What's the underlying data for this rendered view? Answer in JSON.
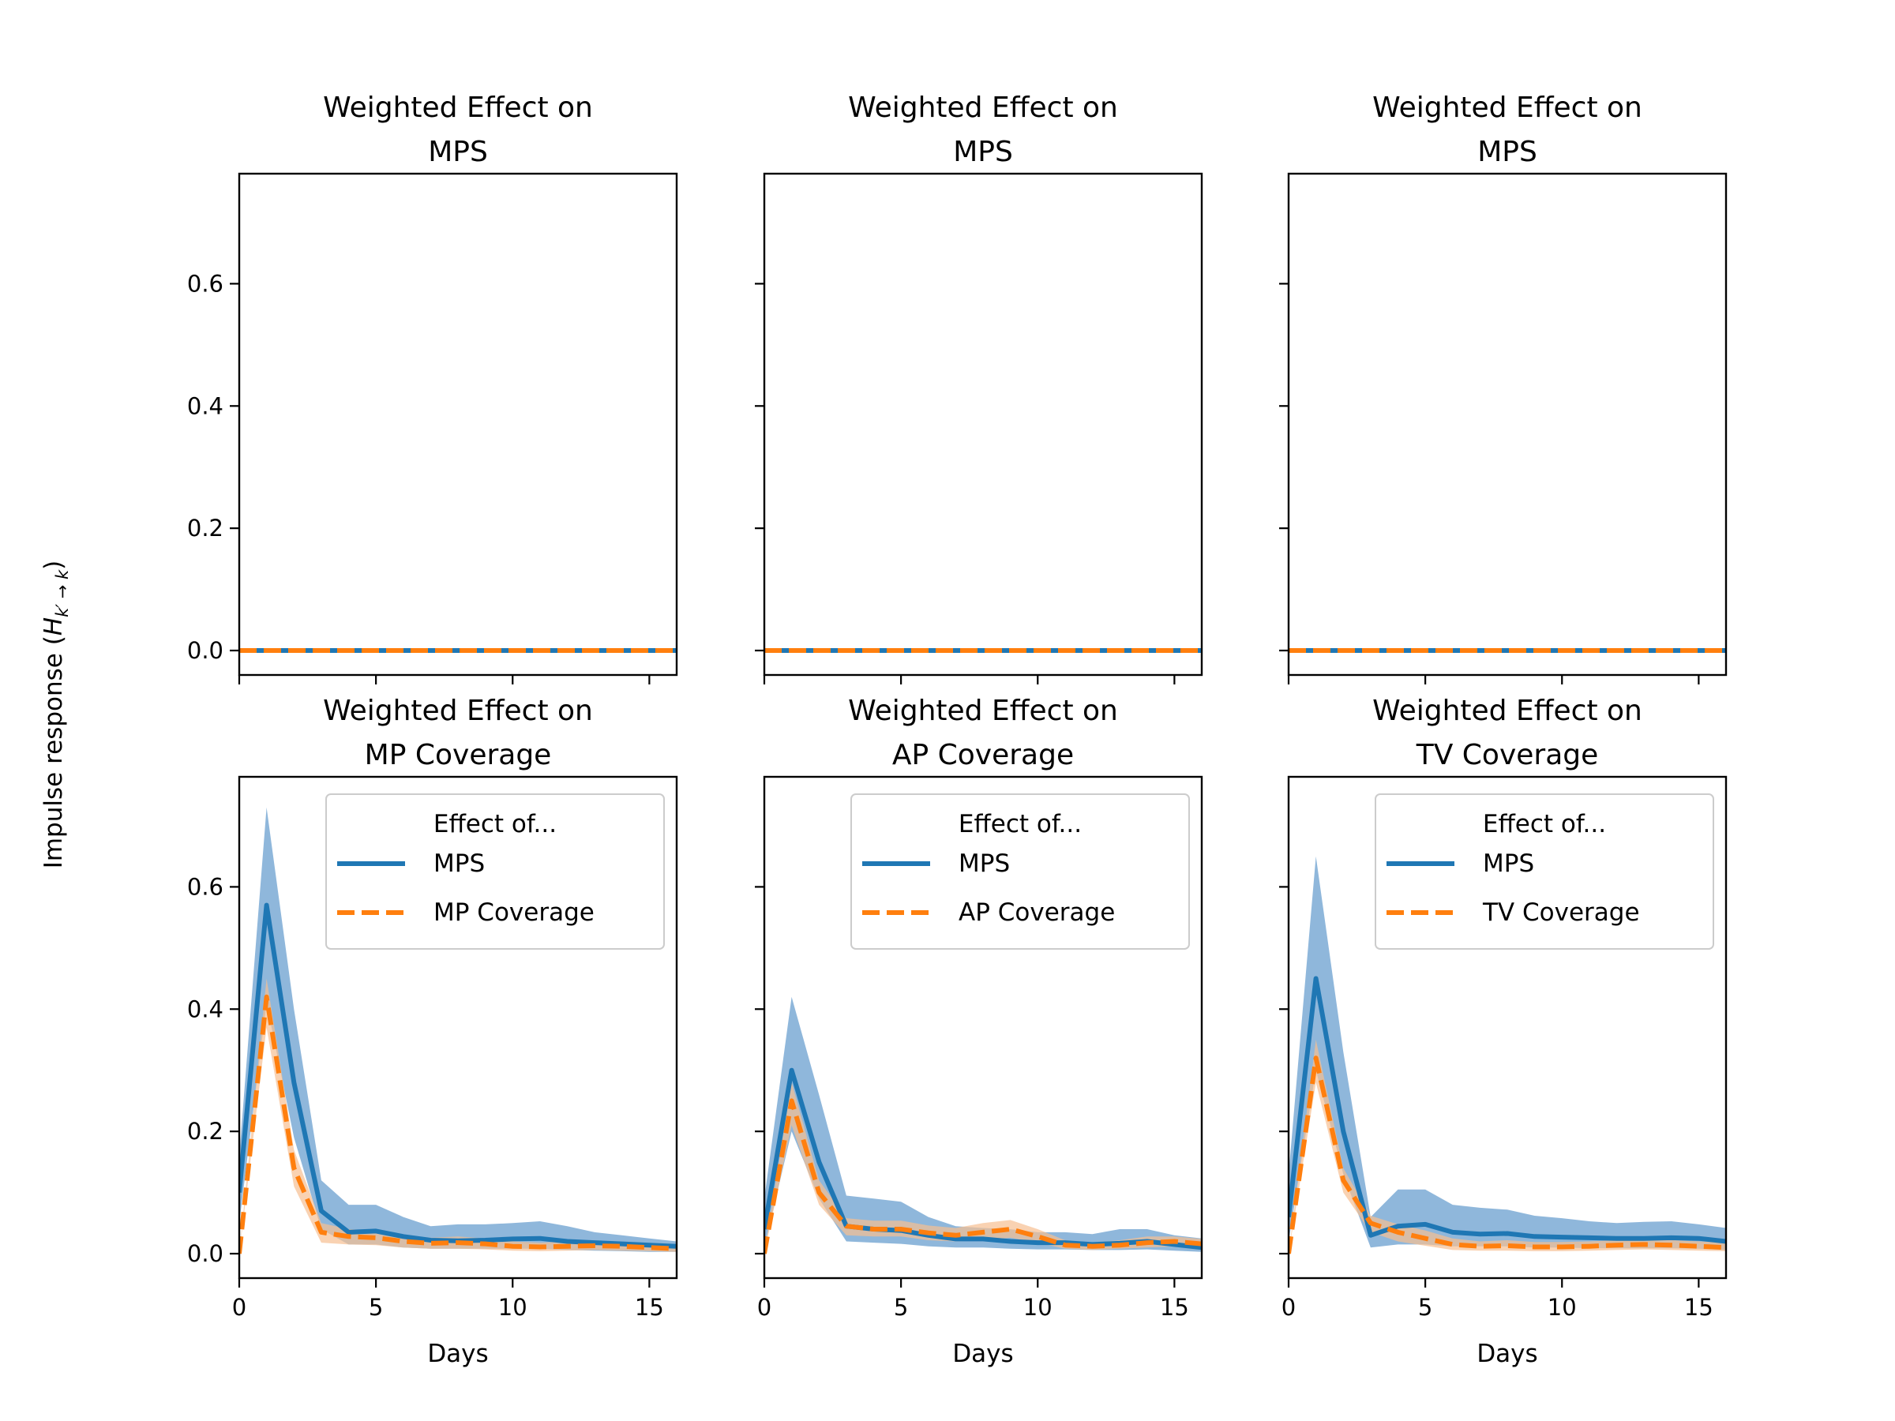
{
  "chart_data": {
    "type": "line",
    "ylabel": "Impulse response (H_{k′ → k})",
    "ylabel_parts": {
      "main": "Impulse response (",
      "var": "H",
      "sub": "k′ → k",
      "close": ")"
    },
    "xlabel": "Days",
    "xlim": [
      0,
      16
    ],
    "ylim": [
      -0.04,
      0.78
    ],
    "xticks": [
      0,
      5,
      10,
      15
    ],
    "yticks": [
      0.0,
      0.2,
      0.4,
      0.6
    ],
    "grid": false,
    "colors": {
      "blue": "#1f77b4",
      "orange": "#ff7f0e",
      "band_blue": "#6a9fcf",
      "band_orange": "#f7bf92"
    },
    "x": [
      0,
      1,
      2,
      3,
      4,
      5,
      6,
      7,
      8,
      9,
      10,
      11,
      12,
      13,
      14,
      15,
      16
    ],
    "panels": [
      {
        "title_line1": "Weighted Effect on",
        "title_line2": "MPS",
        "row": 0,
        "col": 0,
        "series": [
          {
            "name": "MPS",
            "color": "#1f77b4",
            "dash": "solid",
            "values": [
              0,
              0,
              0,
              0,
              0,
              0,
              0,
              0,
              0,
              0,
              0,
              0,
              0,
              0,
              0,
              0,
              0
            ]
          },
          {
            "name": "MPS",
            "color": "#ff7f0e",
            "dash": "dashed",
            "values": [
              0,
              0,
              0,
              0,
              0,
              0,
              0,
              0,
              0,
              0,
              0,
              0,
              0,
              0,
              0,
              0,
              0
            ]
          }
        ]
      },
      {
        "title_line1": "Weighted Effect on",
        "title_line2": "MPS",
        "row": 0,
        "col": 1,
        "series": [
          {
            "name": "MPS",
            "color": "#1f77b4",
            "dash": "solid",
            "values": [
              0,
              0,
              0,
              0,
              0,
              0,
              0,
              0,
              0,
              0,
              0,
              0,
              0,
              0,
              0,
              0,
              0
            ]
          },
          {
            "name": "MPS",
            "color": "#ff7f0e",
            "dash": "dashed",
            "values": [
              0,
              0,
              0,
              0,
              0,
              0,
              0,
              0,
              0,
              0,
              0,
              0,
              0,
              0,
              0,
              0,
              0
            ]
          }
        ]
      },
      {
        "title_line1": "Weighted Effect on",
        "title_line2": "MPS",
        "row": 0,
        "col": 2,
        "series": [
          {
            "name": "MPS",
            "color": "#1f77b4",
            "dash": "solid",
            "values": [
              0,
              0,
              0,
              0,
              0,
              0,
              0,
              0,
              0,
              0,
              0,
              0,
              0,
              0,
              0,
              0,
              0
            ]
          },
          {
            "name": "MPS",
            "color": "#ff7f0e",
            "dash": "dashed",
            "values": [
              0,
              0,
              0,
              0,
              0,
              0,
              0,
              0,
              0,
              0,
              0,
              0,
              0,
              0,
              0,
              0,
              0
            ]
          }
        ]
      },
      {
        "title_line1": "Weighted Effect on",
        "title_line2": "MP Coverage",
        "row": 1,
        "col": 0,
        "legend": {
          "title": "Effect of...",
          "entries": [
            "MPS",
            "MP Coverage"
          ],
          "loc": "upper right"
        },
        "series": [
          {
            "name": "MPS",
            "color": "#1f77b4",
            "dash": "solid",
            "values": [
              0.1,
              0.57,
              0.28,
              0.07,
              0.035,
              0.037,
              0.028,
              0.022,
              0.021,
              0.022,
              0.024,
              0.025,
              0.02,
              0.018,
              0.016,
              0.014,
              0.012
            ],
            "lower": [
              0.05,
              0.41,
              0.19,
              0.04,
              0.015,
              0.015,
              0.01,
              0.008,
              0.008,
              0.008,
              0.008,
              0.008,
              0.006,
              0.005,
              0.004,
              0.003,
              0.003
            ],
            "upper": [
              0.16,
              0.73,
              0.4,
              0.12,
              0.08,
              0.08,
              0.06,
              0.045,
              0.048,
              0.048,
              0.05,
              0.053,
              0.045,
              0.035,
              0.03,
              0.025,
              0.02
            ]
          },
          {
            "name": "MP Coverage",
            "color": "#ff7f0e",
            "dash": "dashed",
            "values": [
              0.0,
              0.42,
              0.14,
              0.035,
              0.028,
              0.026,
              0.02,
              0.017,
              0.018,
              0.016,
              0.012,
              0.011,
              0.012,
              0.013,
              0.012,
              0.01,
              0.008
            ],
            "lower": [
              0.0,
              0.37,
              0.11,
              0.018,
              0.015,
              0.014,
              0.01,
              0.008,
              0.008,
              0.007,
              0.005,
              0.004,
              0.005,
              0.006,
              0.005,
              0.004,
              0.003
            ],
            "upper": [
              0.0,
              0.45,
              0.17,
              0.05,
              0.04,
              0.038,
              0.03,
              0.026,
              0.028,
              0.025,
              0.02,
              0.018,
              0.02,
              0.02,
              0.018,
              0.016,
              0.013
            ]
          }
        ]
      },
      {
        "title_line1": "Weighted Effect on",
        "title_line2": "AP Coverage",
        "row": 1,
        "col": 1,
        "legend": {
          "title": "Effect of...",
          "entries": [
            "MPS",
            "AP Coverage"
          ],
          "loc": "upper right"
        },
        "series": [
          {
            "name": "MPS",
            "color": "#1f77b4",
            "dash": "solid",
            "values": [
              0.04,
              0.3,
              0.15,
              0.045,
              0.04,
              0.038,
              0.03,
              0.024,
              0.024,
              0.02,
              0.018,
              0.018,
              0.015,
              0.017,
              0.02,
              0.015,
              0.01
            ],
            "lower": [
              0.01,
              0.2,
              0.09,
              0.02,
              0.018,
              0.016,
              0.012,
              0.01,
              0.01,
              0.008,
              0.007,
              0.007,
              0.006,
              0.006,
              0.007,
              0.005,
              0.003
            ],
            "upper": [
              0.09,
              0.42,
              0.26,
              0.095,
              0.09,
              0.085,
              0.06,
              0.045,
              0.042,
              0.04,
              0.035,
              0.035,
              0.032,
              0.04,
              0.04,
              0.03,
              0.025
            ]
          },
          {
            "name": "AP Coverage",
            "color": "#ff7f0e",
            "dash": "dashed",
            "values": [
              0.0,
              0.25,
              0.1,
              0.045,
              0.04,
              0.04,
              0.034,
              0.03,
              0.035,
              0.04,
              0.028,
              0.014,
              0.012,
              0.014,
              0.018,
              0.02,
              0.016
            ],
            "lower": [
              0.0,
              0.21,
              0.08,
              0.03,
              0.028,
              0.028,
              0.022,
              0.02,
              0.022,
              0.026,
              0.018,
              0.008,
              0.006,
              0.008,
              0.01,
              0.012,
              0.009
            ],
            "upper": [
              0.0,
              0.28,
              0.12,
              0.058,
              0.054,
              0.054,
              0.046,
              0.042,
              0.05,
              0.055,
              0.04,
              0.022,
              0.018,
              0.022,
              0.028,
              0.028,
              0.024
            ]
          }
        ]
      },
      {
        "title_line1": "Weighted Effect on",
        "title_line2": "TV Coverage",
        "row": 1,
        "col": 2,
        "legend": {
          "title": "Effect of...",
          "entries": [
            "MPS",
            "TV Coverage"
          ],
          "loc": "upper right"
        },
        "series": [
          {
            "name": "MPS",
            "color": "#1f77b4",
            "dash": "solid",
            "values": [
              0.06,
              0.45,
              0.2,
              0.03,
              0.045,
              0.048,
              0.035,
              0.032,
              0.033,
              0.028,
              0.027,
              0.026,
              0.025,
              0.025,
              0.026,
              0.025,
              0.02
            ],
            "lower": [
              0.02,
              0.3,
              0.13,
              0.01,
              0.015,
              0.015,
              0.012,
              0.012,
              0.012,
              0.01,
              0.01,
              0.009,
              0.009,
              0.009,
              0.009,
              0.008,
              0.006
            ],
            "upper": [
              0.13,
              0.65,
              0.33,
              0.06,
              0.105,
              0.105,
              0.08,
              0.075,
              0.072,
              0.062,
              0.058,
              0.053,
              0.05,
              0.052,
              0.053,
              0.048,
              0.042
            ]
          },
          {
            "name": "TV Coverage",
            "color": "#ff7f0e",
            "dash": "dashed",
            "values": [
              0.0,
              0.32,
              0.12,
              0.05,
              0.035,
              0.025,
              0.015,
              0.012,
              0.013,
              0.011,
              0.011,
              0.012,
              0.014,
              0.015,
              0.014,
              0.012,
              0.01
            ],
            "lower": [
              0.0,
              0.28,
              0.1,
              0.035,
              0.02,
              0.013,
              0.006,
              0.005,
              0.005,
              0.004,
              0.004,
              0.005,
              0.006,
              0.007,
              0.006,
              0.005,
              0.004
            ],
            "upper": [
              0.0,
              0.35,
              0.14,
              0.062,
              0.048,
              0.038,
              0.025,
              0.02,
              0.022,
              0.019,
              0.019,
              0.02,
              0.022,
              0.024,
              0.022,
              0.02,
              0.018
            ]
          }
        ]
      }
    ]
  }
}
